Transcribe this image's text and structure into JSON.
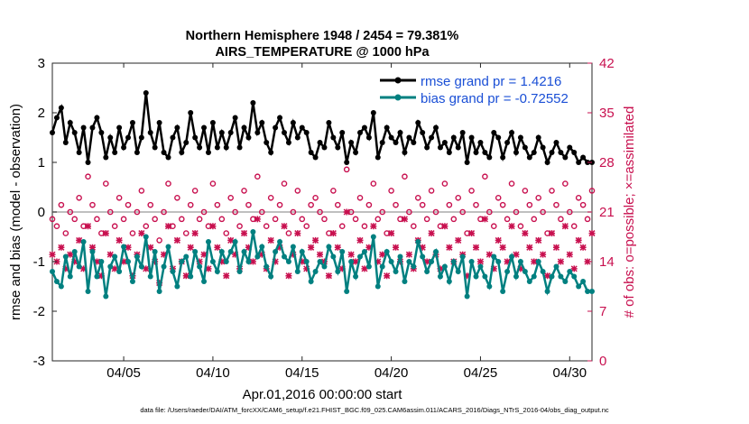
{
  "colors": {
    "rmse": "#000000",
    "bias": "#008080",
    "obs": "#c8104f",
    "legend_text": "#1a4fd6",
    "zero_line": "#aaaaaa"
  },
  "chart_data": {
    "type": "line",
    "title": "Northern Hemisphere 1948 / 2454 = 79.381%",
    "subtitle": "AIRS_TEMPERATURE @ 1000 hPa",
    "xlabel": "Apr.01,2016 00:00:00 start",
    "ylabel": "rmse and bias (model - observation)",
    "ylabel_right": "# of obs: o=possible; ×=assimilated",
    "xlim": [
      1.0,
      31.25
    ],
    "ylim": [
      -3,
      3
    ],
    "ylim_right": [
      0,
      42
    ],
    "xticks": [
      5,
      10,
      15,
      20,
      25,
      30
    ],
    "xtick_labels": [
      "04/05",
      "04/10",
      "04/15",
      "04/20",
      "04/25",
      "04/30"
    ],
    "yticks": [
      -3,
      -2,
      -1,
      0,
      1,
      2,
      3
    ],
    "yticks_right": [
      0,
      7,
      14,
      21,
      28,
      35,
      42
    ],
    "legend": {
      "position": "top-right",
      "entries": [
        "rmse grand pr = 1.4216",
        "bias grand pr = -0.72552"
      ]
    },
    "footer": "data file: /Users/raeder/DAI/ATM_forcXX/CAM6_setup/f.e21.FHIST_BGC.f09_025.CAM6assim.011/ACARS_2016/Diags_NTrS_2016-04/obs_diag_output.nc",
    "x": [
      1.0,
      1.25,
      1.5,
      1.75,
      2.0,
      2.25,
      2.5,
      2.75,
      3.0,
      3.25,
      3.5,
      3.75,
      4.0,
      4.25,
      4.5,
      4.75,
      5.0,
      5.25,
      5.5,
      5.75,
      6.0,
      6.25,
      6.5,
      6.75,
      7.0,
      7.25,
      7.5,
      7.75,
      8.0,
      8.25,
      8.5,
      8.75,
      9.0,
      9.25,
      9.5,
      9.75,
      10.0,
      10.25,
      10.5,
      10.75,
      11.0,
      11.25,
      11.5,
      11.75,
      12.0,
      12.25,
      12.5,
      12.75,
      13.0,
      13.25,
      13.5,
      13.75,
      14.0,
      14.25,
      14.5,
      14.75,
      15.0,
      15.25,
      15.5,
      15.75,
      16.0,
      16.25,
      16.5,
      16.75,
      17.0,
      17.25,
      17.5,
      17.75,
      18.0,
      18.25,
      18.5,
      18.75,
      19.0,
      19.25,
      19.5,
      19.75,
      20.0,
      20.25,
      20.5,
      20.75,
      21.0,
      21.25,
      21.5,
      21.75,
      22.0,
      22.25,
      22.5,
      22.75,
      23.0,
      23.25,
      23.5,
      23.75,
      24.0,
      24.25,
      24.5,
      24.75,
      25.0,
      25.25,
      25.5,
      25.75,
      26.0,
      26.25,
      26.5,
      26.75,
      27.0,
      27.25,
      27.5,
      27.75,
      28.0,
      28.25,
      28.5,
      28.75,
      29.0,
      29.25,
      29.5,
      29.75,
      30.0,
      30.25,
      30.5,
      30.75,
      31.0,
      31.25
    ],
    "series": [
      {
        "name": "rmse",
        "values": [
          1.6,
          1.9,
          2.1,
          1.4,
          1.8,
          1.6,
          1.2,
          1.7,
          1.0,
          1.7,
          1.9,
          1.6,
          1.1,
          1.5,
          1.2,
          1.7,
          1.3,
          1.5,
          1.8,
          1.2,
          1.5,
          2.4,
          1.6,
          1.3,
          1.8,
          1.2,
          1.1,
          1.5,
          1.7,
          1.2,
          1.4,
          2.0,
          1.5,
          1.3,
          1.7,
          1.2,
          1.8,
          1.3,
          1.6,
          1.3,
          1.6,
          1.9,
          1.3,
          1.7,
          1.5,
          2.2,
          1.6,
          1.8,
          1.4,
          1.2,
          1.7,
          1.9,
          1.6,
          1.4,
          1.8,
          1.5,
          1.7,
          1.6,
          1.2,
          1.1,
          1.4,
          1.3,
          1.8,
          1.5,
          1.3,
          1.6,
          1.0,
          1.4,
          1.2,
          1.6,
          1.7,
          1.5,
          2.0,
          1.1,
          1.4,
          1.7,
          1.5,
          1.4,
          1.6,
          1.2,
          1.5,
          1.4,
          1.8,
          1.6,
          1.3,
          1.5,
          1.7,
          1.3,
          1.4,
          1.2,
          1.5,
          1.3,
          1.6,
          1.0,
          1.5,
          1.2,
          1.4,
          1.2,
          1.1,
          1.6,
          1.5,
          1.1,
          1.4,
          1.6,
          1.2,
          1.5,
          1.3,
          1.1,
          1.2,
          1.5,
          1.3,
          1.0,
          1.2,
          1.4,
          1.2,
          1.1,
          1.3,
          1.2,
          1.0,
          1.1,
          1.0,
          1.0
        ],
        "color": "#000000"
      },
      {
        "name": "bias",
        "values": [
          -1.2,
          -1.4,
          -1.5,
          -0.9,
          -1.3,
          -0.8,
          -1.1,
          -0.6,
          -1.6,
          -0.8,
          -1.3,
          -1.0,
          -1.7,
          -1.1,
          -0.9,
          -1.2,
          -0.7,
          -1.0,
          -1.4,
          -0.9,
          -1.1,
          -0.5,
          -1.3,
          -0.8,
          -1.6,
          -1.1,
          -0.7,
          -1.2,
          -1.5,
          -1.0,
          -0.9,
          -1.3,
          -0.8,
          -1.1,
          -1.4,
          -0.6,
          -1.0,
          -1.2,
          -0.8,
          -1.0,
          -0.8,
          -0.6,
          -1.2,
          -0.8,
          -1.0,
          -0.4,
          -0.9,
          -0.7,
          -1.1,
          -1.3,
          -0.8,
          -0.6,
          -0.9,
          -1.0,
          -0.7,
          -1.2,
          -0.8,
          -1.0,
          -1.4,
          -1.2,
          -1.0,
          -1.1,
          -0.7,
          -0.9,
          -1.2,
          -0.8,
          -1.6,
          -1.0,
          -1.3,
          -0.9,
          -0.8,
          -1.1,
          -0.5,
          -1.5,
          -1.1,
          -0.8,
          -1.0,
          -1.2,
          -0.9,
          -1.4,
          -1.0,
          -1.1,
          -0.6,
          -0.9,
          -1.2,
          -1.0,
          -0.8,
          -1.3,
          -1.1,
          -1.4,
          -1.0,
          -1.2,
          -0.9,
          -1.7,
          -1.0,
          -1.3,
          -1.1,
          -1.3,
          -1.5,
          -0.9,
          -1.0,
          -1.6,
          -1.2,
          -0.9,
          -1.3,
          -1.0,
          -1.2,
          -1.4,
          -1.3,
          -1.0,
          -1.2,
          -1.6,
          -1.3,
          -1.1,
          -1.3,
          -1.4,
          -1.2,
          -1.3,
          -1.5,
          -1.4,
          -1.6,
          -1.6
        ],
        "color": "#008080"
      },
      {
        "name": "obs possible",
        "values": [
          20,
          19,
          22,
          18,
          21,
          20,
          23,
          19,
          26,
          22,
          20,
          18,
          25,
          21,
          19,
          23,
          20,
          22,
          18,
          21,
          24,
          19,
          22,
          20,
          17,
          21,
          25,
          19,
          23,
          20,
          18,
          22,
          24,
          20,
          21,
          19,
          25,
          22,
          20,
          18,
          23,
          21,
          19,
          24,
          22,
          20,
          26,
          21,
          19,
          23,
          20,
          22,
          25,
          18,
          21,
          24,
          20,
          19,
          22,
          23,
          21,
          20,
          18,
          24,
          22,
          19,
          27,
          21,
          20,
          23,
          19,
          22,
          25,
          20,
          21,
          18,
          24,
          22,
          20,
          26,
          21,
          19,
          23,
          22,
          20,
          24,
          21,
          19,
          25,
          22,
          20,
          23,
          21,
          18,
          24,
          22,
          20,
          26,
          21,
          19,
          23,
          22,
          20,
          25,
          21,
          19,
          24,
          22,
          20,
          23,
          21,
          18,
          24,
          22,
          20,
          25,
          21,
          19,
          23,
          22,
          20,
          24
        ],
        "color": "#c8104f"
      },
      {
        "name": "obs assimilated",
        "values": [
          15,
          14,
          16,
          13,
          15,
          14,
          17,
          13,
          19,
          16,
          14,
          12,
          18,
          15,
          13,
          17,
          14,
          16,
          12,
          15,
          18,
          13,
          16,
          14,
          11,
          15,
          19,
          13,
          17,
          14,
          12,
          16,
          18,
          14,
          15,
          13,
          19,
          16,
          14,
          12,
          17,
          15,
          13,
          18,
          16,
          14,
          20,
          15,
          13,
          17,
          14,
          16,
          19,
          12,
          15,
          18,
          14,
          13,
          16,
          17,
          15,
          14,
          12,
          18,
          16,
          13,
          21,
          15,
          14,
          17,
          13,
          16,
          19,
          14,
          15,
          12,
          18,
          16,
          14,
          20,
          15,
          13,
          17,
          16,
          14,
          18,
          15,
          13,
          19,
          16,
          14,
          17,
          15,
          12,
          18,
          16,
          14,
          20,
          15,
          13,
          17,
          16,
          14,
          19,
          15,
          13,
          18,
          16,
          14,
          17,
          15,
          12,
          18,
          16,
          14,
          19,
          15,
          13,
          17,
          16,
          14,
          18
        ],
        "color": "#c8104f"
      }
    ]
  }
}
